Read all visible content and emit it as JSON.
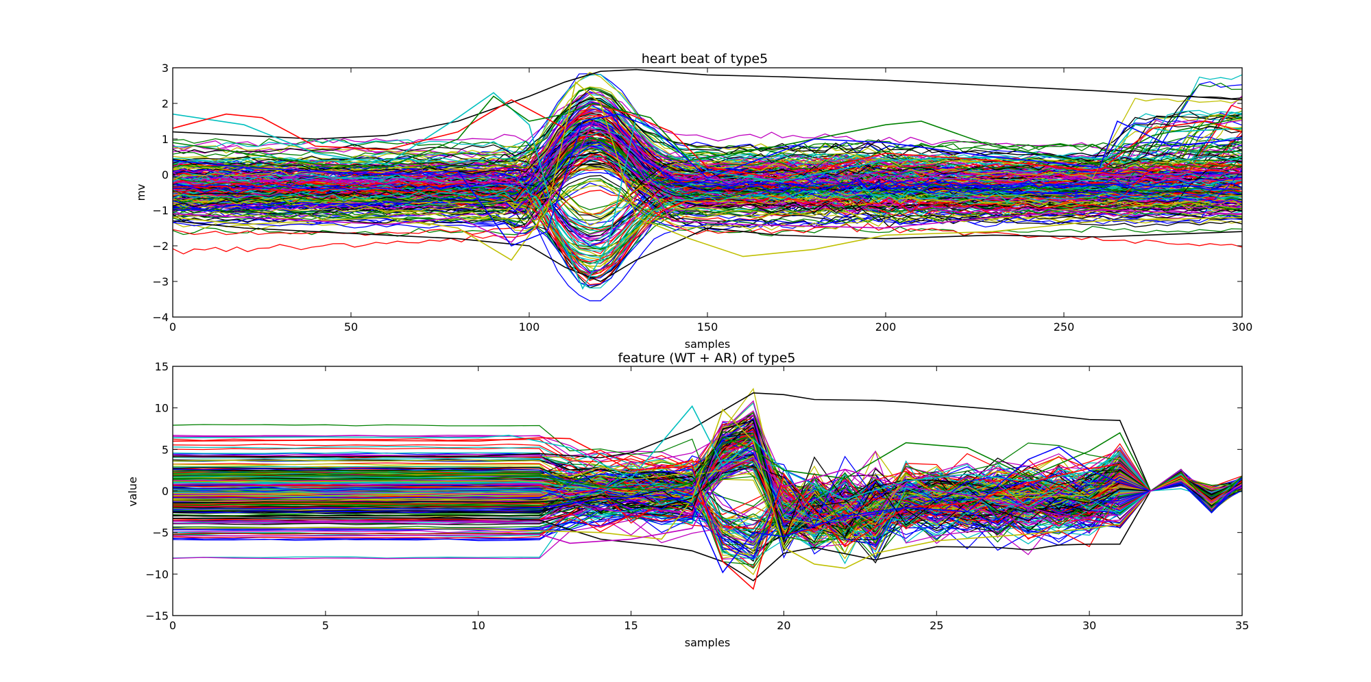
{
  "chart_data": [
    {
      "type": "line",
      "title": "heart beat of type5",
      "xlabel": "samples",
      "ylabel": "mv",
      "xlim": [
        0,
        300
      ],
      "ylim": [
        -4,
        3
      ],
      "xticks": [
        0,
        50,
        100,
        150,
        200,
        250,
        300
      ],
      "yticks": [
        -4,
        -3,
        -2,
        -1,
        0,
        1,
        2,
        3
      ],
      "grid": false,
      "legend": "none",
      "line_color_cycle": [
        "#0000ff",
        "#008000",
        "#ff0000",
        "#00bfbf",
        "#bf00bf",
        "#bfbf00",
        "#000000"
      ],
      "n_series_approx": 300,
      "series": [
        {
          "color": "#000000",
          "x": [
            0,
            20,
            40,
            60,
            80,
            100,
            110,
            120,
            130,
            150,
            170,
            200,
            230,
            260,
            300
          ],
          "y": [
            1.2,
            1.1,
            1.0,
            1.1,
            1.5,
            2.2,
            2.6,
            2.9,
            2.95,
            2.8,
            2.75,
            2.65,
            2.5,
            2.35,
            2.1
          ]
        },
        {
          "color": "#000000",
          "x": [
            0,
            20,
            40,
            60,
            80,
            90,
            100,
            110,
            120,
            130,
            150,
            170,
            200,
            230,
            260,
            300
          ],
          "y": [
            -1.3,
            -1.5,
            -1.6,
            -1.7,
            -1.8,
            -1.9,
            -2.0,
            -2.6,
            -3.0,
            -2.4,
            -1.5,
            -1.7,
            -1.8,
            -1.7,
            -1.75,
            -1.6
          ]
        },
        {
          "color": "#00bfbf",
          "x": [
            0,
            20,
            40,
            60,
            80,
            90,
            100,
            108,
            115,
            122,
            130,
            150,
            170,
            200,
            230,
            260,
            270,
            280,
            300
          ],
          "y": [
            1.7,
            1.4,
            0.6,
            0.3,
            1.6,
            2.3,
            1.4,
            -1.5,
            -3.2,
            -2.0,
            1.6,
            0.1,
            -0.2,
            0.4,
            0.5,
            0.2,
            1.4,
            1.2,
            1.3
          ]
        },
        {
          "color": "#ff0000",
          "x": [
            0,
            15,
            25,
            40,
            60,
            80,
            95,
            110,
            118,
            128,
            140,
            150,
            170,
            200,
            230,
            260,
            275,
            290,
            300
          ],
          "y": [
            1.3,
            1.7,
            1.6,
            0.8,
            0.7,
            1.2,
            2.1,
            1.3,
            2.0,
            1.7,
            1.2,
            0.2,
            -0.1,
            0.6,
            0.4,
            0.1,
            1.3,
            1.5,
            1.2
          ]
        },
        {
          "color": "#008000",
          "x": [
            0,
            20,
            40,
            60,
            80,
            90,
            100,
            110,
            118,
            126,
            134,
            145,
            170,
            200,
            210,
            230,
            260,
            275,
            300
          ],
          "y": [
            0.9,
            0.6,
            0.3,
            0.2,
            1.0,
            2.2,
            1.5,
            1.7,
            2.0,
            1.8,
            1.6,
            0.4,
            0.8,
            1.4,
            1.5,
            0.8,
            0.3,
            1.1,
            1.6
          ]
        },
        {
          "color": "#bfbf00",
          "x": [
            0,
            20,
            40,
            60,
            80,
            95,
            105,
            113,
            120,
            130,
            145,
            160,
            180,
            200,
            230,
            260,
            300
          ],
          "y": [
            -1.2,
            -1.4,
            -1.3,
            -1.2,
            -1.5,
            -2.4,
            -1.0,
            2.6,
            2.0,
            -1.2,
            -1.8,
            -2.3,
            -2.1,
            -1.7,
            -1.6,
            -1.3,
            -1.2
          ]
        },
        {
          "color": "#bf00bf",
          "x": [
            0,
            20,
            40,
            60,
            80,
            95,
            110,
            118,
            126,
            140,
            160,
            200,
            230,
            260,
            300
          ],
          "y": [
            -1.1,
            -1.2,
            -1.3,
            -1.4,
            -1.2,
            -1.9,
            -0.2,
            1.5,
            0.9,
            -1.3,
            -1.4,
            -1.5,
            -1.2,
            -1.0,
            -1.1
          ]
        },
        {
          "color": "#0000ff",
          "x": [
            0,
            20,
            40,
            60,
            80,
            95,
            105,
            115,
            125,
            135,
            150,
            180,
            200,
            230,
            260,
            265,
            280,
            300
          ],
          "y": [
            0.4,
            0.2,
            0.1,
            0.0,
            0.1,
            -2.0,
            -1.6,
            1.5,
            1.7,
            1.3,
            -0.1,
            1.0,
            0.9,
            0.5,
            0.2,
            1.5,
            0.8,
            1.0
          ]
        }
      ]
    },
    {
      "type": "line",
      "title": "feature (WT + AR) of type5",
      "xlabel": "samples",
      "ylabel": "value",
      "xlim": [
        0,
        35
      ],
      "ylim": [
        -15,
        15
      ],
      "xticks": [
        0,
        5,
        10,
        15,
        20,
        25,
        30,
        35
      ],
      "yticks": [
        -15,
        -10,
        -5,
        0,
        5,
        10,
        15
      ],
      "grid": false,
      "legend": "none",
      "line_color_cycle": [
        "#0000ff",
        "#008000",
        "#ff0000",
        "#00bfbf",
        "#bf00bf",
        "#bfbf00",
        "#000000"
      ],
      "n_series_approx": 300,
      "series": [
        {
          "color": "#000000",
          "x": [
            0,
            5,
            10,
            12,
            14,
            15,
            17,
            19,
            20,
            21,
            23,
            24,
            25,
            27,
            30,
            31,
            32,
            33,
            34,
            35
          ],
          "y": [
            4.2,
            4.1,
            4.2,
            4.5,
            4.0,
            4.6,
            7.5,
            11.8,
            11.6,
            11.0,
            10.9,
            10.7,
            10.4,
            9.8,
            8.6,
            8.5,
            0.0,
            1.2,
            -1.8,
            1.3
          ]
        },
        {
          "color": "#000000",
          "x": [
            0,
            5,
            10,
            12,
            14,
            16,
            17,
            18,
            19,
            20,
            21,
            23,
            25,
            27,
            28,
            29,
            30,
            31,
            32,
            33,
            34,
            35
          ],
          "y": [
            -3.3,
            -3.2,
            -3.3,
            -3.5,
            -5.8,
            -6.6,
            -7.2,
            -8.5,
            -10.8,
            -7.5,
            -6.8,
            -8.3,
            -6.7,
            -6.8,
            -7.1,
            -6.5,
            -6.4,
            -6.4,
            0.0,
            1.5,
            -1.0,
            1.0
          ]
        },
        {
          "color": "#00bfbf",
          "x": [
            0,
            5,
            10,
            11,
            13,
            15,
            17,
            18,
            19,
            20,
            22,
            24,
            26,
            28,
            30,
            31,
            32,
            33,
            34,
            35
          ],
          "y": [
            6.4,
            6.5,
            6.4,
            6.7,
            5.2,
            1.5,
            10.2,
            3.0,
            6.2,
            2.5,
            -1.0,
            1.2,
            2.0,
            1.2,
            2.3,
            4.5,
            0.0,
            2.0,
            -1.5,
            1.5
          ]
        },
        {
          "color": "#ff0000",
          "x": [
            0,
            5,
            10,
            12,
            13,
            15,
            17,
            18,
            19,
            20,
            22,
            24,
            26,
            28,
            30,
            31,
            32,
            33,
            34,
            35
          ],
          "y": [
            6.0,
            6.1,
            6.0,
            6.4,
            6.3,
            2.5,
            3.0,
            -8.5,
            -11.8,
            2.0,
            -6.7,
            -2.0,
            -1.5,
            1.0,
            2.7,
            3.2,
            0.0,
            1.8,
            -1.2,
            1.2
          ]
        },
        {
          "color": "#bfbf00",
          "x": [
            0,
            5,
            10,
            12,
            14,
            16,
            17,
            18,
            19,
            20,
            21,
            22,
            23,
            25,
            28,
            30,
            31,
            32,
            33,
            34,
            35
          ],
          "y": [
            -4.5,
            -4.4,
            -4.6,
            -4.8,
            -5.0,
            -5.8,
            -1.0,
            9.8,
            6.0,
            -6.8,
            -8.8,
            -9.3,
            -7.5,
            -6.0,
            -5.2,
            -4.5,
            -4.0,
            0.0,
            1.6,
            -1.6,
            0.9
          ]
        },
        {
          "color": "#008000",
          "x": [
            0,
            5,
            10,
            12,
            14,
            16,
            17,
            18,
            19,
            20,
            22,
            24,
            26,
            28,
            30,
            31,
            32,
            33,
            34,
            35
          ],
          "y": [
            1.5,
            1.4,
            1.5,
            1.8,
            0.5,
            0.0,
            1.0,
            6.5,
            5.0,
            2.5,
            1.5,
            5.8,
            5.2,
            1.7,
            4.8,
            7.0,
            0.0,
            2.2,
            -2.0,
            1.8
          ]
        },
        {
          "color": "#0000ff",
          "x": [
            0,
            5,
            10,
            12,
            14,
            16,
            17,
            18,
            19,
            20,
            22,
            24,
            26,
            28,
            29,
            30,
            31,
            32,
            33,
            34,
            35
          ],
          "y": [
            -2.2,
            -2.1,
            -2.2,
            -2.0,
            -1.0,
            -0.5,
            -1.5,
            -9.8,
            -5.0,
            -5.5,
            -3.0,
            -2.0,
            -2.5,
            3.8,
            5.3,
            2.5,
            1.0,
            0.0,
            1.0,
            -2.6,
            1.6
          ]
        },
        {
          "color": "#bf00bf",
          "x": [
            0,
            5,
            10,
            12,
            13,
            15,
            17,
            18,
            19,
            20,
            22,
            24,
            26,
            28,
            30,
            31,
            32,
            33,
            34,
            35
          ],
          "y": [
            -5.4,
            -5.4,
            -5.3,
            -5.2,
            -6.3,
            -5.8,
            -4.5,
            2.5,
            4.0,
            0.5,
            2.6,
            0.5,
            -0.5,
            -2.0,
            -3.8,
            -3.5,
            0.0,
            1.2,
            -1.4,
            0.8
          ]
        }
      ]
    }
  ]
}
